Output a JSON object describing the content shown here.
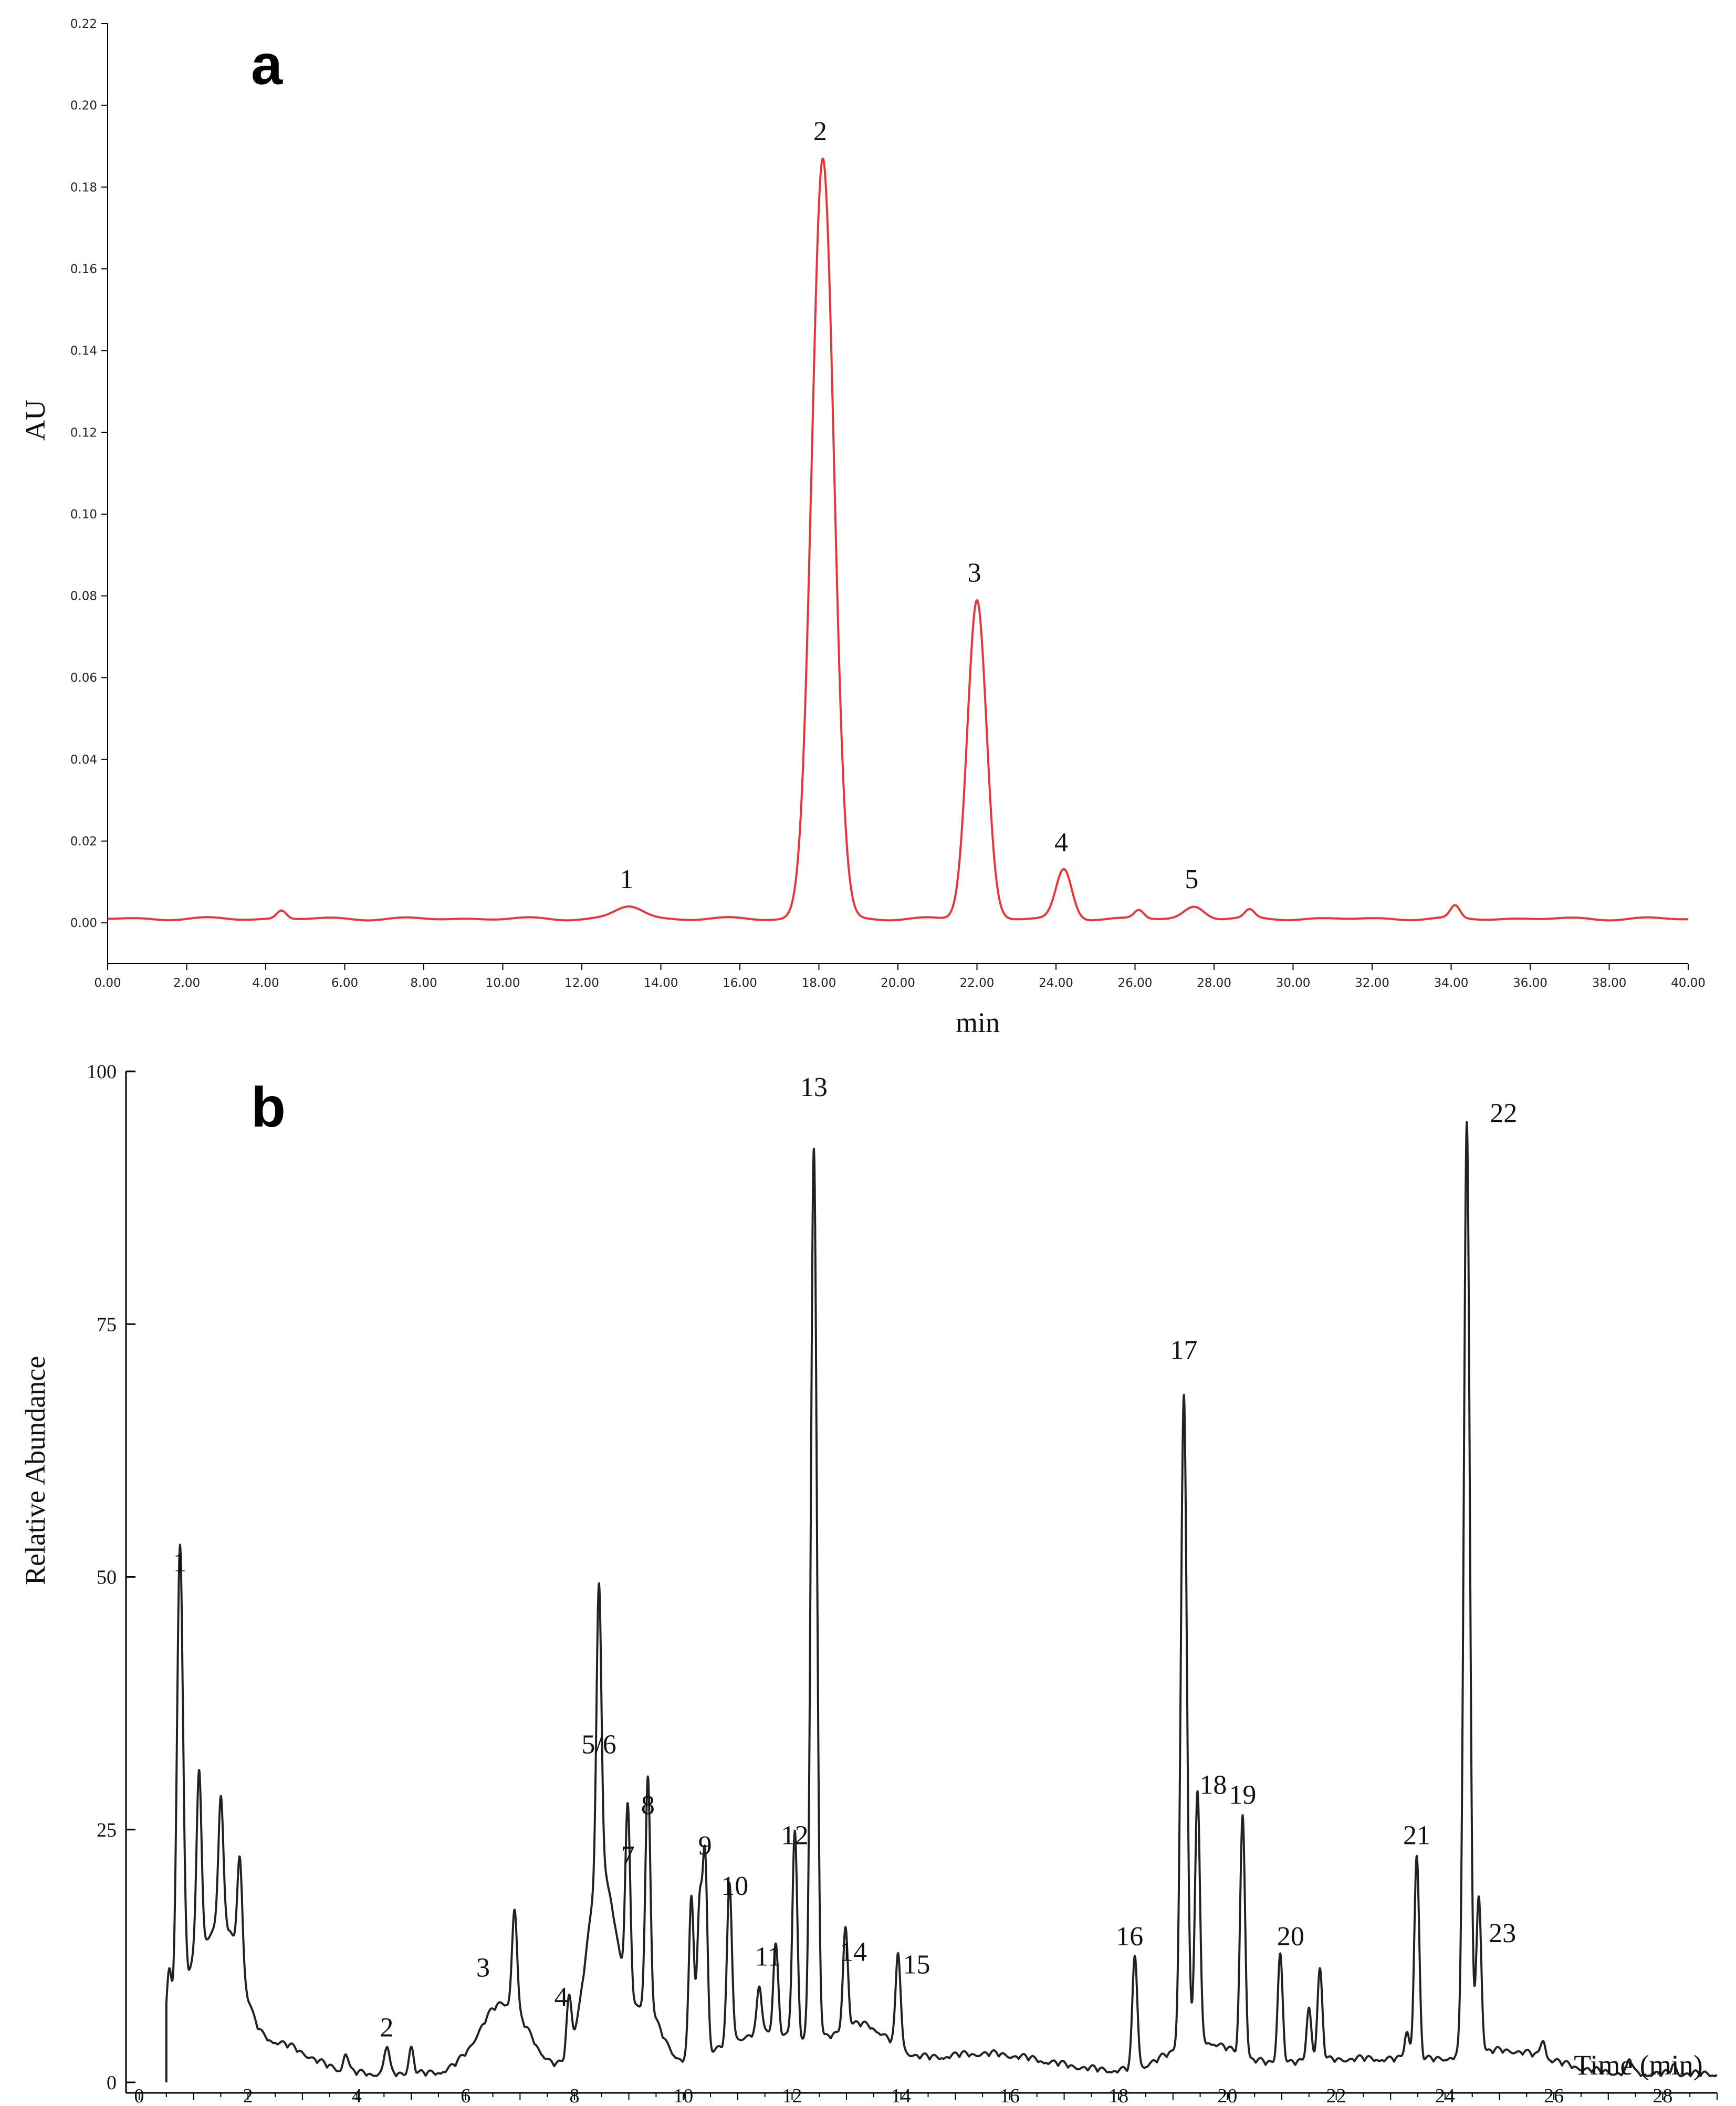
{
  "chart_data": [
    {
      "panel": "a",
      "type": "line",
      "color": "#e8353a",
      "ylabel": "AU",
      "xlabel": "min",
      "xlim": [
        0,
        40
      ],
      "ylim": [
        -0.01,
        0.22
      ],
      "xticks": [
        "0.00",
        "2.00",
        "4.00",
        "6.00",
        "8.00",
        "10.00",
        "12.00",
        "14.00",
        "16.00",
        "18.00",
        "20.00",
        "22.00",
        "24.00",
        "26.00",
        "28.00",
        "30.00",
        "32.00",
        "34.00",
        "36.00",
        "38.00",
        "40.00"
      ],
      "yticks": [
        "0.00",
        "0.02",
        "0.04",
        "0.06",
        "0.08",
        "0.10",
        "0.12",
        "0.14",
        "0.16",
        "0.18",
        "0.20",
        "0.22"
      ],
      "baseline": 0.001,
      "peaks": [
        {
          "label": "1",
          "x": 13.2,
          "y": 0.004
        },
        {
          "label": "2",
          "x": 18.1,
          "y": 0.187
        },
        {
          "label": "3",
          "x": 22.0,
          "y": 0.079
        },
        {
          "label": "4",
          "x": 24.2,
          "y": 0.013
        },
        {
          "label": "5",
          "x": 27.5,
          "y": 0.004
        }
      ],
      "minor_peaks": [
        {
          "x": 4.4,
          "y": 0.003
        },
        {
          "x": 5.0,
          "y": 0.001
        },
        {
          "x": 26.1,
          "y": 0.003
        },
        {
          "x": 28.9,
          "y": 0.003
        },
        {
          "x": 34.1,
          "y": 0.004
        }
      ]
    },
    {
      "panel": "b",
      "type": "line",
      "color": "#222222",
      "ylabel": "Relative Abundance",
      "xlabel": "Time (min)",
      "xlim": [
        0,
        29
      ],
      "ylim": [
        0,
        100
      ],
      "xticks": [
        "0",
        "2",
        "4",
        "6",
        "8",
        "10",
        "12",
        "14",
        "16",
        "18",
        "20",
        "22",
        "24",
        "26",
        "28"
      ],
      "yticks": [
        "0",
        "25",
        "50",
        "75",
        "100"
      ],
      "peaks": [
        {
          "label": "1",
          "x": 0.75,
          "y": 49
        },
        {
          "label": "2",
          "x": 4.55,
          "y": 3
        },
        {
          "label": "3",
          "x": 6.9,
          "y": 11
        },
        {
          "label": "4",
          "x": 7.9,
          "y": 6
        },
        {
          "label": "5/6",
          "x": 8.45,
          "y": 31
        },
        {
          "label": "7",
          "x": 8.98,
          "y": 20
        },
        {
          "label": "8",
          "x": 9.35,
          "y": 25
        },
        {
          "label": "9",
          "x": 10.4,
          "y": 21
        },
        {
          "label": "10",
          "x": 10.85,
          "y": 17
        },
        {
          "label": "11",
          "x": 11.7,
          "y": 10
        },
        {
          "label": "12",
          "x": 12.05,
          "y": 22
        },
        {
          "label": "13",
          "x": 12.4,
          "y": 96
        },
        {
          "label": "14",
          "x": 12.98,
          "y": 11
        },
        {
          "label": "15",
          "x": 13.95,
          "y": 10
        },
        {
          "label": "16",
          "x": 18.3,
          "y": 12
        },
        {
          "label": "17",
          "x": 19.2,
          "y": 70
        },
        {
          "label": "18",
          "x": 19.45,
          "y": 27
        },
        {
          "label": "19",
          "x": 20.28,
          "y": 26
        },
        {
          "label": "20",
          "x": 20.97,
          "y": 12
        },
        {
          "label": "21",
          "x": 23.48,
          "y": 22
        },
        {
          "label": "22",
          "x": 24.4,
          "y": 100
        },
        {
          "label": "23",
          "x": 24.62,
          "y": 17
        }
      ]
    }
  ],
  "labels": {
    "panel_a": "a",
    "panel_b": "b"
  }
}
